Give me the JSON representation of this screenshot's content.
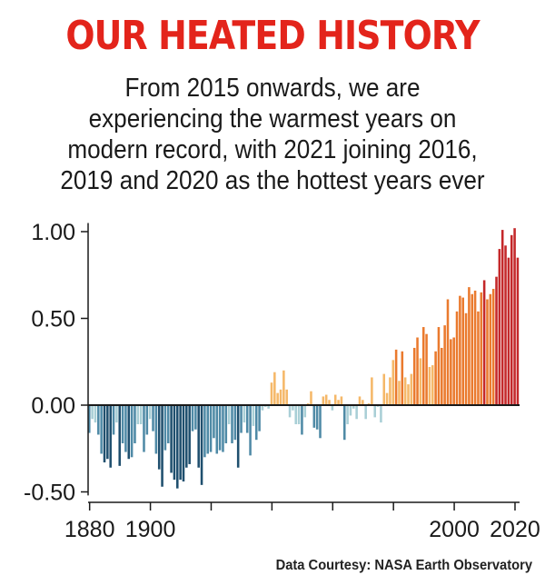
{
  "header": {
    "title": "OUR HEATED HISTORY",
    "subtitle_lines": [
      "From 2015 onwards, we are",
      "experiencing the warmest years on",
      "modern record, with 2021 joining 2016,",
      "2019 and 2020 as the hottest years ever"
    ]
  },
  "source": "Data Courtesy: NASA Earth Observatory",
  "chart_data": {
    "type": "bar",
    "title": "OUR HEATED HISTORY",
    "xlabel": "",
    "ylabel": "",
    "ylim": [
      -0.5,
      1.05
    ],
    "yticks": [
      1.0,
      0.5,
      0.0,
      -0.5
    ],
    "ytick_labels": [
      "1.00",
      "0.50",
      "0.00",
      "-0.50"
    ],
    "xlim": [
      1880,
      2021
    ],
    "xticks": [
      1880,
      1900,
      1920,
      1940,
      1960,
      1980,
      2000,
      2020
    ],
    "xtick_labels": [
      "1880",
      "1900",
      "",
      "",
      "",
      "",
      "2000",
      "2020"
    ],
    "x_start": 1880,
    "grid": false,
    "colors": {
      "cold_strong": "#1f4f6e",
      "cold_mid": "#4f8aa6",
      "cold_light": "#a9cfd6",
      "warm_light": "#f5b869",
      "warm_mid": "#ea7a2e",
      "warm_strong": "#c4282a",
      "axis": "#1a1a1a"
    },
    "values": [
      -0.16,
      -0.08,
      -0.1,
      -0.17,
      -0.28,
      -0.33,
      -0.31,
      -0.36,
      -0.17,
      -0.1,
      -0.35,
      -0.22,
      -0.27,
      -0.31,
      -0.3,
      -0.22,
      -0.11,
      -0.11,
      -0.27,
      -0.17,
      -0.08,
      -0.15,
      -0.28,
      -0.37,
      -0.47,
      -0.26,
      -0.22,
      -0.39,
      -0.43,
      -0.48,
      -0.43,
      -0.44,
      -0.36,
      -0.34,
      -0.15,
      -0.14,
      -0.36,
      -0.46,
      -0.3,
      -0.28,
      -0.27,
      -0.19,
      -0.28,
      -0.26,
      -0.27,
      -0.22,
      -0.11,
      -0.22,
      -0.2,
      -0.36,
      -0.16,
      -0.1,
      -0.16,
      -0.29,
      -0.12,
      -0.2,
      -0.15,
      -0.03,
      -0.01,
      -0.02,
      0.13,
      0.19,
      0.07,
      0.09,
      0.2,
      0.09,
      -0.07,
      -0.03,
      -0.11,
      -0.11,
      -0.17,
      -0.07,
      0.01,
      0.08,
      -0.13,
      -0.14,
      -0.19,
      0.05,
      0.06,
      0.03,
      -0.03,
      0.06,
      0.03,
      0.05,
      -0.2,
      -0.11,
      -0.06,
      -0.02,
      -0.08,
      0.05,
      0.03,
      -0.08,
      0.01,
      0.16,
      -0.07,
      -0.01,
      -0.1,
      0.18,
      0.07,
      0.16,
      0.26,
      0.32,
      0.14,
      0.31,
      0.16,
      0.12,
      0.18,
      0.33,
      0.39,
      0.27,
      0.45,
      0.41,
      0.22,
      0.23,
      0.31,
      0.45,
      0.33,
      0.46,
      0.61,
      0.38,
      0.39,
      0.54,
      0.63,
      0.62,
      0.53,
      0.68,
      0.64,
      0.66,
      0.54,
      0.65,
      0.72,
      0.61,
      0.64,
      0.67,
      0.74,
      0.9,
      1.01,
      0.92,
      0.85,
      0.98,
      1.02,
      0.85
    ]
  }
}
